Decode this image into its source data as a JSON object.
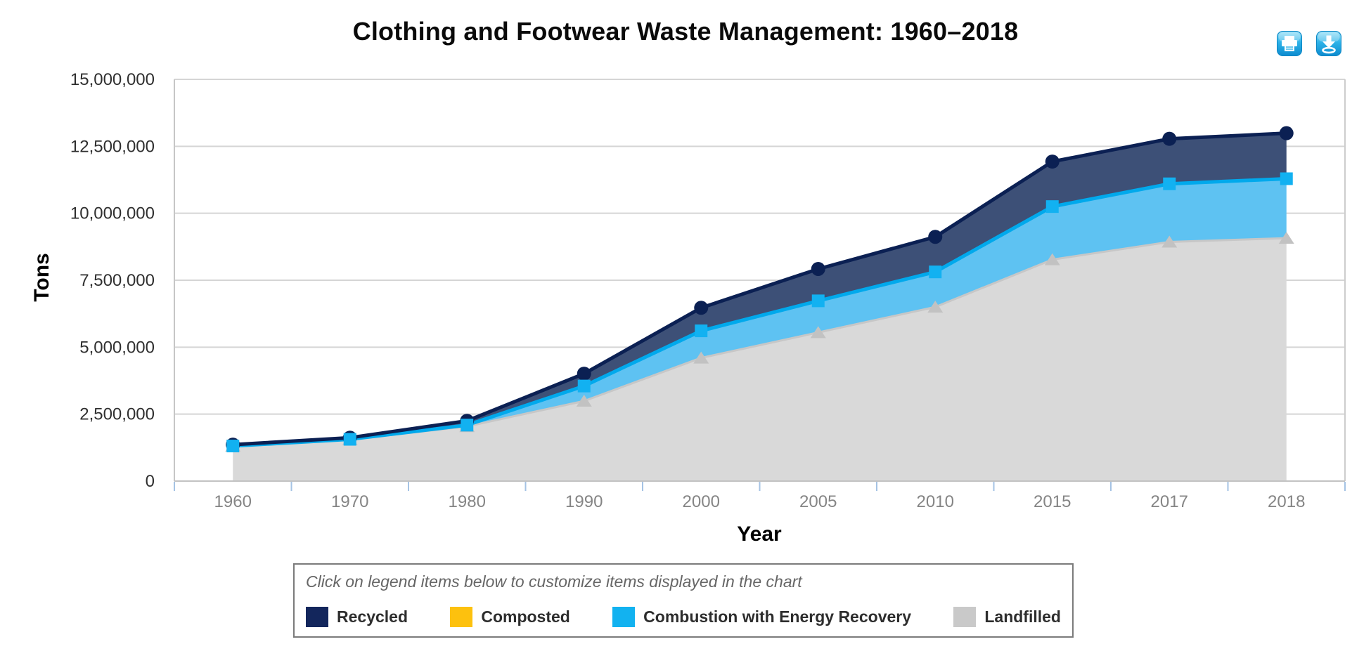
{
  "toolbar": {
    "buttons": [
      {
        "name": "print",
        "icon": "print-icon"
      },
      {
        "name": "download",
        "icon": "download-icon"
      }
    ]
  },
  "legend": {
    "hint": "Click on legend items below to customize items displayed in the chart",
    "items": [
      {
        "label": "Recycled",
        "color": "#13265c"
      },
      {
        "label": "Composted",
        "color": "#fdc10e"
      },
      {
        "label": "Combustion with Energy Recovery",
        "color": "#12b2f0"
      },
      {
        "label": "Landfilled",
        "color": "#c9c9c9"
      }
    ]
  },
  "chart_data": {
    "type": "area",
    "stacked": true,
    "title": "Clothing and Footwear Waste Management: 1960–2018",
    "xlabel": "Year",
    "ylabel": "Tons",
    "ylim": [
      0,
      15000000
    ],
    "ytick_step": 2500000,
    "grid": true,
    "legend_position": "bottom",
    "categories": [
      "1960",
      "1970",
      "1980",
      "1990",
      "2000",
      "2005",
      "2010",
      "2015",
      "2017",
      "2018"
    ],
    "stack_order_bottom_to_top": [
      "Landfilled",
      "Composted",
      "Combustion with Energy Recovery",
      "Recycled"
    ],
    "series": [
      {
        "name": "Recycled",
        "values": [
          50000,
          60000,
          160000,
          460000,
          860000,
          1190000,
          1310000,
          1680000,
          1680000,
          1700000
        ],
        "line_color": "#0b2053",
        "fill_color": "#3d5077",
        "marker": "circle",
        "marker_color": "#0b2053",
        "line_width": 5
      },
      {
        "name": "Composted",
        "values": [
          0,
          0,
          0,
          0,
          0,
          0,
          0,
          0,
          0,
          0
        ],
        "line_color": "#fdc10e",
        "fill_color": "#fdc10e",
        "marker": "none",
        "marker_color": "#fdc10e",
        "line_width": 0
      },
      {
        "name": "Combustion with Energy Recovery",
        "values": [
          0,
          10000,
          50000,
          560000,
          1010000,
          1180000,
          1310000,
          1980000,
          2170000,
          2220000
        ],
        "line_color": "#00a9ec",
        "fill_color": "#5ec2f2",
        "marker": "square",
        "marker_color": "#12b1f1",
        "line_width": 5
      },
      {
        "name": "Landfilled",
        "values": [
          1310000,
          1550000,
          2040000,
          2990000,
          4600000,
          5550000,
          6500000,
          8270000,
          8930000,
          9070000
        ],
        "line_color": "#c7c7c7",
        "fill_color": "#d9d9d9",
        "marker": "triangle",
        "marker_color": "#c2c2c2",
        "line_width": 3
      }
    ],
    "totals": [
      1360000,
      1620000,
      2250000,
      4010000,
      6470000,
      7920000,
      9120000,
      11930000,
      12780000,
      12990000
    ]
  }
}
